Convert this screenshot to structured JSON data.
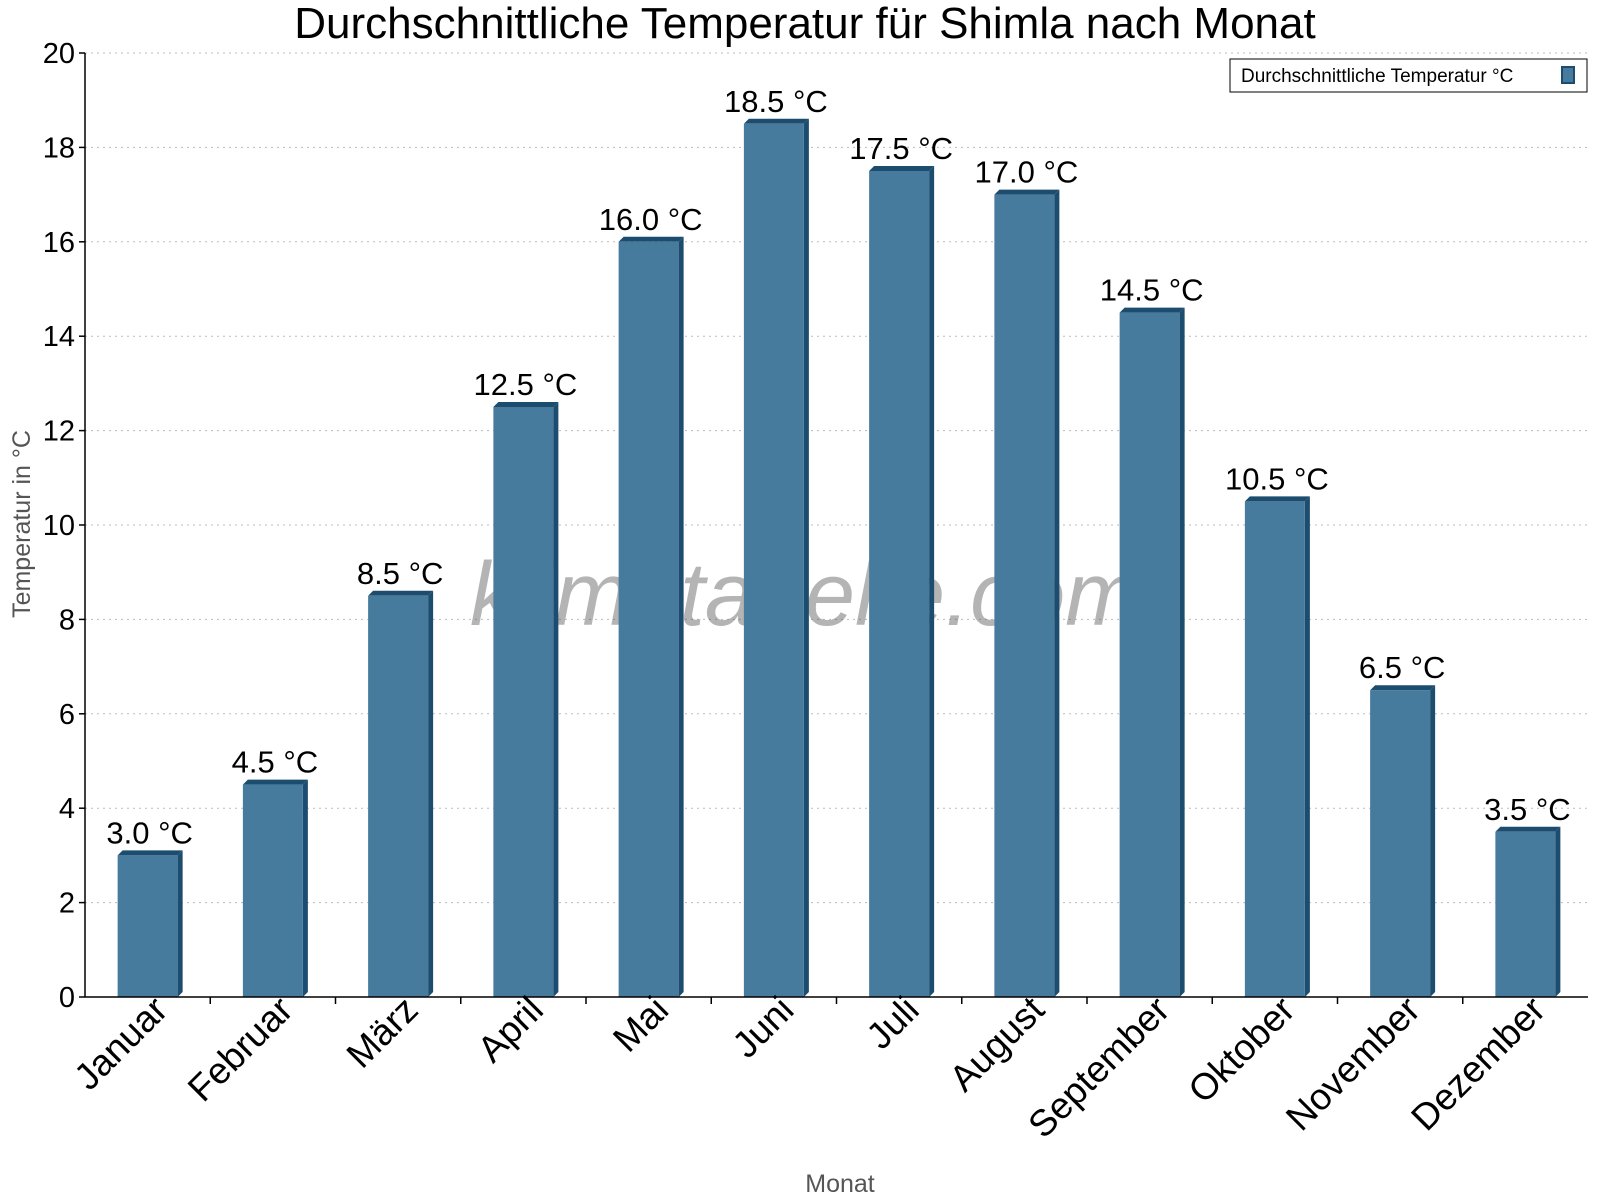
{
  "chart_data": {
    "type": "bar",
    "title": "Durchschnittliche Temperatur für Shimla nach Monat",
    "xlabel": "Monat",
    "ylabel": "Temperatur in °C",
    "categories": [
      "Januar",
      "Februar",
      "März",
      "April",
      "Mai",
      "Juni",
      "Juli",
      "August",
      "September",
      "Oktober",
      "November",
      "Dezember"
    ],
    "series": [
      {
        "name": "Durchschnittliche Temperatur °C",
        "values": [
          3.0,
          4.5,
          8.5,
          12.5,
          16.0,
          18.5,
          17.5,
          17.0,
          14.5,
          10.5,
          6.5,
          3.5
        ],
        "labels": [
          "3.0 °C",
          "4.5 °C",
          "8.5 °C",
          "12.5 °C",
          "16.0 °C",
          "18.5 °C",
          "17.5 °C",
          "17.0 °C",
          "14.5 °C",
          "10.5 °C",
          "6.5 °C",
          "3.5 °C"
        ]
      }
    ],
    "ylim": [
      0,
      20
    ],
    "yticks": [
      0,
      2,
      4,
      6,
      8,
      10,
      12,
      14,
      16,
      18,
      20
    ],
    "grid": true,
    "legend_position": "top-right",
    "colors": {
      "bar_face": "#467b9e",
      "bar_side": "#1d4d6e"
    }
  },
  "watermark": "klimatabelle.com"
}
